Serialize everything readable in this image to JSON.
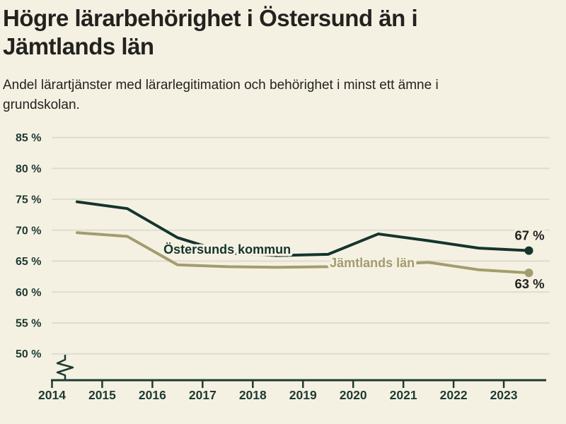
{
  "header": {
    "title": "Högre lärarbehörighet i Östersund än i Jämtlands län",
    "title_lines": [
      "Högre lärarbehörighet i Östersund än i",
      "Jämtlands län"
    ],
    "subtitle": "Andel lärartjänster med lärarlegitimation och behörighet i minst ett ämne i grundskolan.",
    "subtitle_lines": [
      "Andel lärartjänster med lärarlegitimation och behörighet i minst ett ämne i",
      "grundskolan."
    ]
  },
  "colors": {
    "background": "#f5f1e2",
    "title_text": "#232220",
    "axis_text": "#1d3b33",
    "axis_line": "#1d3b33",
    "gridline": "#dedcd0",
    "value_label_text": "#232220",
    "series_ostersund": "#14352d",
    "series_jamtland": "#a39d6e"
  },
  "chart_data": {
    "type": "line",
    "title": "Högre lärarbehörighet i Östersund än i Jämtlands län",
    "subtitle": "Andel lärartjänster med lärarlegitimation och behörighet i minst ett ämne i grundskolan.",
    "unit": "%",
    "grid": "horizontal",
    "y_axis_break": true,
    "ylim": [
      47,
      87
    ],
    "y_ticks": [
      85,
      80,
      75,
      70,
      65,
      60,
      55,
      50
    ],
    "y_tick_suffix": " %",
    "x_ticks": [
      2014,
      2015,
      2016,
      2017,
      2018,
      2019,
      2020,
      2021,
      2022,
      2023
    ],
    "x": [
      2014.5,
      2015.5,
      2016.5,
      2017.5,
      2018.5,
      2019.5,
      2020.5,
      2021.5,
      2022.5,
      2023.5
    ],
    "series": [
      {
        "id": "ostersunds-kommun",
        "name": "Östersunds kommun",
        "color": "#14352d",
        "values": [
          74.6,
          73.5,
          68.8,
          66.3,
          65.9,
          66.1,
          69.4,
          68.3,
          67.1,
          66.7
        ],
        "end_label": "67 %",
        "end_label_side": "above"
      },
      {
        "id": "jamtlands-lan",
        "name": "Jämtlands län",
        "color": "#a39d6e",
        "values": [
          69.6,
          69.0,
          64.4,
          64.1,
          64.0,
          64.1,
          64.4,
          64.8,
          63.6,
          63.1
        ],
        "end_label": "63 %",
        "end_label_side": "below"
      }
    ],
    "annotations": [
      {
        "text": "Östersunds kommun",
        "x": 2017.49,
        "y": 66.95,
        "color": "#14352d"
      },
      {
        "text": "Jämtlands län",
        "x": 2020.38,
        "y": 64.8,
        "color": "#a39d6e"
      }
    ],
    "legend_position": "inline-labels"
  }
}
